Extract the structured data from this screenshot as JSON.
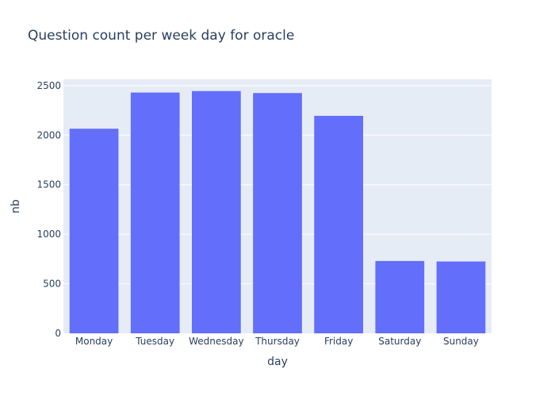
{
  "colors": {
    "bar": "#636efa",
    "plot_bg": "#e5ecf6",
    "grid": "#ffffff",
    "text": "#2a3f5f",
    "page_bg": "#ffffff"
  },
  "chart_data": {
    "type": "bar",
    "title": "Question count per week day for oracle",
    "xlabel": "day",
    "ylabel": "nb",
    "categories": [
      "Monday",
      "Tuesday",
      "Wednesday",
      "Thursday",
      "Friday",
      "Saturday",
      "Sunday"
    ],
    "values": [
      2065,
      2430,
      2445,
      2425,
      2195,
      730,
      725
    ],
    "ylim": [
      0,
      2563
    ],
    "yticks": [
      0,
      500,
      1000,
      1500,
      2000,
      2500
    ],
    "grid": true,
    "legend": "none"
  }
}
